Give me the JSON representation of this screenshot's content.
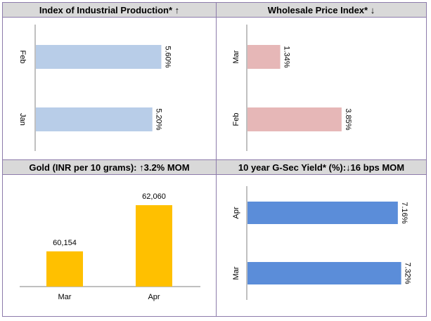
{
  "panels": [
    {
      "id": "iip",
      "title": "Index of Industrial Production* ↑",
      "chart_data": {
        "type": "bar",
        "orientation": "horizontal",
        "categories": [
          "Feb",
          "Jan"
        ],
        "values": [
          5.6,
          5.2
        ],
        "value_labels": [
          "5.60%",
          "5.20%"
        ],
        "unit": "%",
        "xlim": [
          0,
          5.9
        ],
        "color": "#b8cde8",
        "category_label_rotation": 90,
        "value_label_rotation": 90
      }
    },
    {
      "id": "wpi",
      "title": "Wholesale Price Index* ↓",
      "chart_data": {
        "type": "bar",
        "orientation": "horizontal",
        "categories": [
          "Mar",
          "Feb"
        ],
        "values": [
          1.34,
          3.85
        ],
        "value_labels": [
          "1.34%",
          "3.85%"
        ],
        "unit": "%",
        "xlim": [
          0,
          4.2
        ],
        "color": "#e6b7b7",
        "category_label_rotation": -90,
        "value_label_rotation": 90
      }
    },
    {
      "id": "gold",
      "title": "Gold (INR per 10 grams): ↑3.2% MOM",
      "chart_data": {
        "type": "bar",
        "orientation": "vertical",
        "categories": [
          "Mar",
          "Apr"
        ],
        "values": [
          60154,
          62060
        ],
        "value_labels": [
          "60,154",
          "62,060"
        ],
        "ylim": [
          58700,
          62700
        ],
        "color": "#ffc000"
      }
    },
    {
      "id": "gsec",
      "title": "10 year G-Sec Yield* (%):↓16 bps MOM",
      "chart_data": {
        "type": "bar",
        "orientation": "horizontal",
        "categories": [
          "Apr",
          "Mar"
        ],
        "values": [
          7.16,
          7.32
        ],
        "value_labels": [
          "7.16%",
          "7.32%"
        ],
        "unit": "%",
        "xlim": [
          0,
          7.4
        ],
        "color": "#5b8dd9",
        "category_label_rotation": -90,
        "value_label_rotation": 90
      }
    }
  ]
}
